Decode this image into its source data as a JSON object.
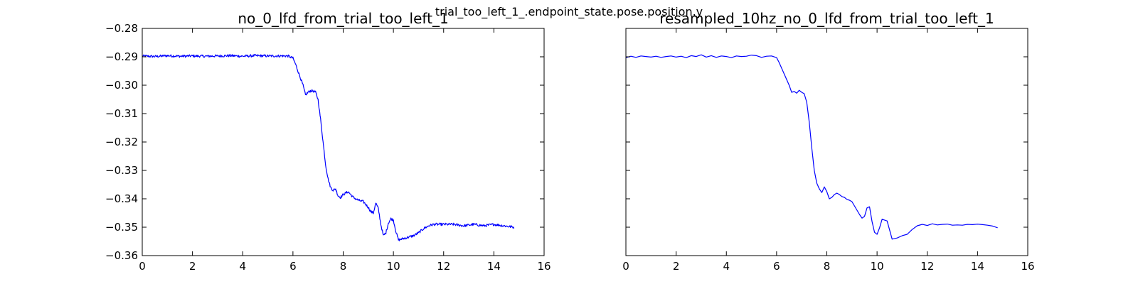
{
  "figure": {
    "suptitle": "trial_too_left_1_.endpoint_state.pose.position.y"
  },
  "colors": {
    "line": "#0000ff",
    "axes": "#000000",
    "background": "#ffffff"
  },
  "chart_data": [
    {
      "type": "line",
      "title": "no_0_lfd_from_trial_too_left_1",
      "xlabel": "",
      "ylabel": "",
      "xlim": [
        0,
        16
      ],
      "ylim": [
        -0.36,
        -0.28
      ],
      "xticks": [
        0,
        2,
        4,
        6,
        8,
        10,
        12,
        14,
        16
      ],
      "xtick_labels": [
        "0",
        "2",
        "4",
        "6",
        "8",
        "10",
        "12",
        "14",
        "16"
      ],
      "yticks": [
        -0.28,
        -0.29,
        -0.3,
        -0.31,
        -0.32,
        -0.33,
        -0.34,
        -0.35,
        -0.36
      ],
      "ytick_labels": [
        "−0.28",
        "−0.29",
        "−0.30",
        "−0.31",
        "−0.32",
        "−0.33",
        "−0.34",
        "−0.35",
        "−0.36"
      ],
      "show_yticklabels": true,
      "grid": false,
      "noisy": true,
      "series": [
        {
          "x": [
            0,
            0.5,
            1,
            1.5,
            2,
            2.5,
            3,
            3.5,
            4,
            4.5,
            5,
            5.5,
            5.8,
            6.0,
            6.1,
            6.2,
            6.3,
            6.4,
            6.5,
            6.6,
            6.7,
            6.8,
            6.9,
            7.0,
            7.1,
            7.2,
            7.3,
            7.4,
            7.5,
            7.6,
            7.7,
            7.8,
            7.9,
            8.0,
            8.2,
            8.4,
            8.6,
            8.8,
            9.0,
            9.1,
            9.2,
            9.3,
            9.4,
            9.5,
            9.6,
            9.7,
            9.8,
            9.9,
            10.0,
            10.1,
            10.2,
            10.4,
            10.6,
            10.8,
            11.0,
            11.2,
            11.4,
            11.6,
            12.0,
            12.4,
            12.8,
            13.2,
            13.6,
            14.0,
            14.4,
            14.8
          ],
          "y": [
            -0.2897,
            -0.2899,
            -0.2896,
            -0.2898,
            -0.2897,
            -0.2898,
            -0.2897,
            -0.2896,
            -0.2898,
            -0.2896,
            -0.2897,
            -0.2897,
            -0.2897,
            -0.2905,
            -0.2925,
            -0.295,
            -0.2975,
            -0.3,
            -0.3035,
            -0.3025,
            -0.302,
            -0.302,
            -0.3025,
            -0.305,
            -0.312,
            -0.32,
            -0.328,
            -0.333,
            -0.336,
            -0.337,
            -0.3365,
            -0.339,
            -0.3395,
            -0.3385,
            -0.3375,
            -0.3395,
            -0.3405,
            -0.341,
            -0.343,
            -0.3445,
            -0.345,
            -0.3415,
            -0.3435,
            -0.349,
            -0.353,
            -0.352,
            -0.3485,
            -0.347,
            -0.3475,
            -0.3515,
            -0.3545,
            -0.354,
            -0.3535,
            -0.353,
            -0.352,
            -0.3505,
            -0.3495,
            -0.349,
            -0.349,
            -0.349,
            -0.3495,
            -0.349,
            -0.3495,
            -0.349,
            -0.3495,
            -0.35
          ]
        }
      ]
    },
    {
      "type": "line",
      "title": "resampled_10hz_no_0_lfd_from_trial_too_left_1",
      "xlabel": "",
      "ylabel": "",
      "xlim": [
        0,
        16
      ],
      "ylim": [
        -0.36,
        -0.28
      ],
      "xticks": [
        0,
        2,
        4,
        6,
        8,
        10,
        12,
        14,
        16
      ],
      "xtick_labels": [
        "0",
        "2",
        "4",
        "6",
        "8",
        "10",
        "12",
        "14",
        "16"
      ],
      "yticks": [
        -0.28,
        -0.29,
        -0.3,
        -0.31,
        -0.32,
        -0.33,
        -0.34,
        -0.35,
        -0.36
      ],
      "ytick_labels": [],
      "show_yticklabels": false,
      "grid": false,
      "noisy": false,
      "series": [
        {
          "x": [
            0,
            0.2,
            0.4,
            0.6,
            0.8,
            1.0,
            1.2,
            1.4,
            1.6,
            1.8,
            2.0,
            2.2,
            2.4,
            2.6,
            2.8,
            3.0,
            3.2,
            3.4,
            3.6,
            3.8,
            4.0,
            4.2,
            4.4,
            4.6,
            4.8,
            5.0,
            5.2,
            5.4,
            5.6,
            5.8,
            6.0,
            6.1,
            6.2,
            6.3,
            6.4,
            6.5,
            6.6,
            6.7,
            6.8,
            6.9,
            7.0,
            7.1,
            7.2,
            7.3,
            7.4,
            7.5,
            7.6,
            7.7,
            7.8,
            7.9,
            8.0,
            8.1,
            8.2,
            8.3,
            8.4,
            8.5,
            8.6,
            8.7,
            8.8,
            8.9,
            9.0,
            9.1,
            9.2,
            9.3,
            9.4,
            9.5,
            9.6,
            9.7,
            9.8,
            9.9,
            10.0,
            10.1,
            10.2,
            10.4,
            10.6,
            10.8,
            11.0,
            11.2,
            11.4,
            11.6,
            11.8,
            12.0,
            12.2,
            12.4,
            12.6,
            12.8,
            13.0,
            13.2,
            13.4,
            13.6,
            13.8,
            14.0,
            14.2,
            14.4,
            14.6,
            14.8
          ],
          "y": [
            -0.2903,
            -0.2898,
            -0.2902,
            -0.2897,
            -0.2899,
            -0.2901,
            -0.2898,
            -0.2902,
            -0.2899,
            -0.2897,
            -0.2901,
            -0.2898,
            -0.2903,
            -0.2896,
            -0.2899,
            -0.2893,
            -0.2901,
            -0.2896,
            -0.2902,
            -0.2897,
            -0.2899,
            -0.2903,
            -0.2897,
            -0.2899,
            -0.2898,
            -0.2894,
            -0.2896,
            -0.2902,
            -0.2898,
            -0.2897,
            -0.2903,
            -0.292,
            -0.294,
            -0.296,
            -0.298,
            -0.3,
            -0.3025,
            -0.3022,
            -0.3028,
            -0.3018,
            -0.3025,
            -0.303,
            -0.306,
            -0.313,
            -0.322,
            -0.33,
            -0.3345,
            -0.3365,
            -0.3378,
            -0.3358,
            -0.3375,
            -0.34,
            -0.3395,
            -0.3385,
            -0.338,
            -0.3385,
            -0.3392,
            -0.3395,
            -0.3402,
            -0.3405,
            -0.341,
            -0.3425,
            -0.344,
            -0.3455,
            -0.3468,
            -0.3462,
            -0.3432,
            -0.3428,
            -0.348,
            -0.3518,
            -0.3525,
            -0.3502,
            -0.3472,
            -0.3478,
            -0.3542,
            -0.3538,
            -0.353,
            -0.3525,
            -0.3508,
            -0.3495,
            -0.349,
            -0.3494,
            -0.3488,
            -0.3492,
            -0.349,
            -0.3489,
            -0.3493,
            -0.3492,
            -0.3493,
            -0.349,
            -0.3491,
            -0.3489,
            -0.3491,
            -0.3493,
            -0.3496,
            -0.3502
          ]
        }
      ]
    }
  ]
}
